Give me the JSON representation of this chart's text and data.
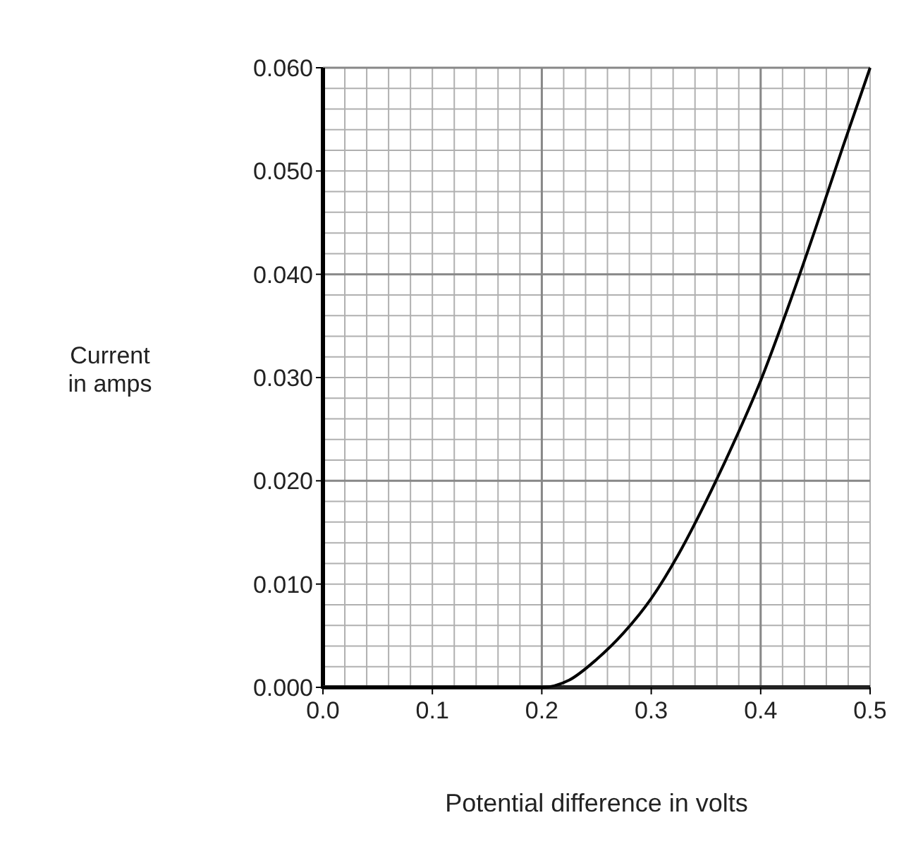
{
  "chart_data": {
    "type": "line",
    "xlabel": "Potential difference in volts",
    "ylabel": "Current\nin amps",
    "series": [
      {
        "color": "#000000",
        "x": [
          0,
          0.1,
          0.2,
          0.225,
          0.25,
          0.275,
          0.3,
          0.325,
          0.35,
          0.375,
          0.4,
          0.425,
          0.45,
          0.475,
          0.5
        ],
        "values": [
          0,
          0,
          0,
          0.0007,
          0.0027,
          0.0053,
          0.0086,
          0.0129,
          0.018,
          0.0236,
          0.0297,
          0.0368,
          0.0444,
          0.0523,
          0.06
        ]
      }
    ],
    "xlim": [
      0,
      0.5
    ],
    "ylim": [
      0,
      0.06
    ],
    "xticks": [
      {
        "value": 0,
        "label": "0.0"
      },
      0.1,
      0.2,
      0.3,
      0.4,
      0.5
    ],
    "yticks": [
      {
        "value": 0,
        "label": "0.000"
      },
      {
        "value": 0.01,
        "label": "0.010"
      },
      {
        "value": 0.02,
        "label": "0.020"
      },
      {
        "value": 0.03,
        "label": "0.030"
      },
      {
        "value": 0.04,
        "label": "0.040"
      },
      {
        "value": 0.05,
        "label": "0.050"
      },
      {
        "value": 0.06,
        "label": "0.060"
      }
    ],
    "grid": true,
    "marker": "none",
    "line_style": "solid"
  }
}
